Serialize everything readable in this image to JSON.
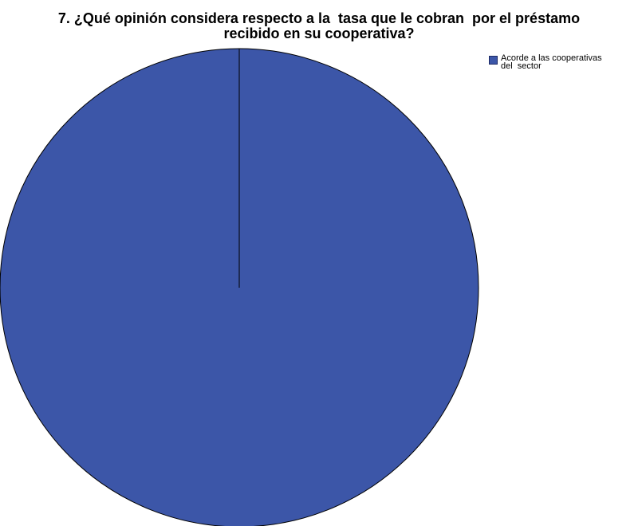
{
  "chart_data": {
    "type": "pie",
    "title_lines": [
      "7. ¿Qué opinión considera respecto a la  tasa que le cobran  por el préstamo",
      "recibido en su cooperativa?"
    ],
    "categories": [
      "Acorde a las cooperativas del  sector"
    ],
    "values": [
      100
    ],
    "colors": [
      "#3c56a8"
    ],
    "legend_lines": [
      "Acorde a las cooperativas",
      "del  sector"
    ],
    "legend_position": "top-right"
  }
}
